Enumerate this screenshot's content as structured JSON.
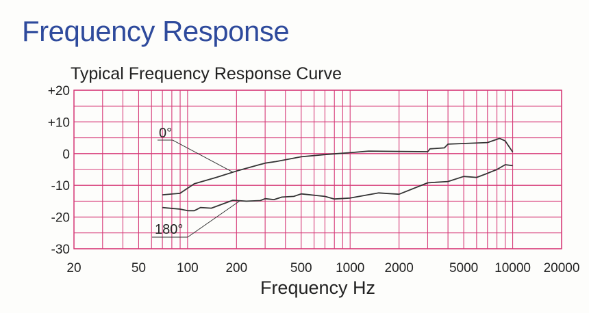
{
  "header": {
    "title": "Frequency Response"
  },
  "colors": {
    "title": "#2e4a9c",
    "grid": "#d63a78",
    "curve": "#333333"
  },
  "chart_data": {
    "type": "line",
    "title": "Typical Frequency Response Curve",
    "xlabel": "Frequency Hz",
    "ylabel": "",
    "x_scale": "log",
    "xlim": [
      20,
      20000
    ],
    "ylim": [
      -30,
      20
    ],
    "grid": true,
    "x_ticks": [
      20,
      50,
      100,
      200,
      500,
      1000,
      2000,
      5000,
      10000,
      20000
    ],
    "x_tick_labels": [
      "20",
      "50",
      "100",
      "200",
      "500",
      "1000",
      "2000",
      "5000",
      "10000",
      "20000"
    ],
    "y_ticks": [
      20,
      10,
      0,
      -10,
      -20,
      -30
    ],
    "y_tick_labels": [
      "+20",
      "+10",
      "0",
      "-10",
      "-20",
      "-30"
    ],
    "series": [
      {
        "name": "0°",
        "x": [
          70,
          90,
          110,
          150,
          200,
          300,
          350,
          500,
          700,
          1000,
          1300,
          2000,
          3000,
          3100,
          3800,
          4000,
          7000,
          8300,
          9000,
          10000
        ],
        "y": [
          -13,
          -12.5,
          -9.5,
          -7.5,
          -5.5,
          -3,
          -2.5,
          -1,
          -0.3,
          0.3,
          0.8,
          0.7,
          0.6,
          1.5,
          1.8,
          3,
          3.5,
          4.8,
          4,
          0.5
        ]
      },
      {
        "name": "180°",
        "x": [
          70,
          90,
          100,
          110,
          120,
          140,
          190,
          230,
          280,
          300,
          340,
          380,
          450,
          500,
          700,
          800,
          1000,
          1500,
          2000,
          3000,
          4000,
          5000,
          6000,
          7000,
          8000,
          9000,
          10000
        ],
        "y": [
          -17,
          -17.5,
          -18,
          -18,
          -17,
          -17.2,
          -14.7,
          -15,
          -14.8,
          -14.2,
          -14.5,
          -13.7,
          -13.5,
          -12.7,
          -13.5,
          -14.3,
          -14,
          -12.4,
          -12.8,
          -9.2,
          -8.8,
          -7.2,
          -7.5,
          -6.2,
          -5,
          -3.5,
          -3.8
        ]
      }
    ],
    "annotations": [
      {
        "text": "0°",
        "series": "0°",
        "at_x": 190
      },
      {
        "text": "180°",
        "series": "180°",
        "at_x": 210
      }
    ]
  }
}
